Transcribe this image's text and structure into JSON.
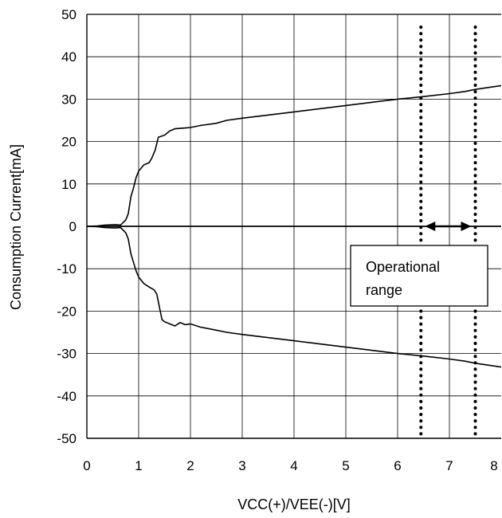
{
  "chart_data": {
    "type": "line",
    "title": "",
    "xlabel": "VCC(+)/VEE(-)[V]",
    "ylabel": "Consumption Current[mA]",
    "xlim": [
      0,
      8
    ],
    "ylim": [
      -50,
      50
    ],
    "x_ticks": [
      "0",
      "1",
      "2",
      "3",
      "4",
      "5",
      "6",
      "7",
      "8"
    ],
    "y_ticks": [
      "50",
      "40",
      "30",
      "20",
      "10",
      "0",
      "-10",
      "-20",
      "-30",
      "-40",
      "-50"
    ],
    "grid": true,
    "series": [
      {
        "points": [
          [
            0.0,
            0.0
          ],
          [
            0.2,
            0.1
          ],
          [
            0.35,
            0.3
          ],
          [
            0.55,
            0.4
          ],
          [
            0.65,
            0.3
          ],
          [
            0.75,
            1.5
          ],
          [
            0.8,
            3.0
          ],
          [
            0.85,
            7.0
          ],
          [
            0.9,
            9.0
          ],
          [
            0.95,
            11.5
          ],
          [
            1.0,
            13.0
          ],
          [
            1.1,
            14.5
          ],
          [
            1.2,
            15.0
          ],
          [
            1.25,
            16.0
          ],
          [
            1.32,
            18.0
          ],
          [
            1.38,
            21.0
          ],
          [
            1.5,
            21.5
          ],
          [
            1.6,
            22.5
          ],
          [
            1.7,
            23.0
          ],
          [
            1.9,
            23.2
          ],
          [
            2.0,
            23.3
          ],
          [
            2.2,
            23.8
          ],
          [
            2.5,
            24.3
          ],
          [
            2.7,
            25.0
          ],
          [
            3.0,
            25.5
          ],
          [
            4.0,
            27.0
          ],
          [
            5.0,
            28.5
          ],
          [
            6.0,
            30.0
          ],
          [
            6.5,
            30.6
          ],
          [
            7.0,
            31.3
          ],
          [
            7.3,
            31.8
          ],
          [
            7.5,
            32.3
          ],
          [
            8.0,
            33.2
          ],
          [
            8.2,
            33.6
          ]
        ]
      },
      {
        "points": [
          [
            0.0,
            0.0
          ],
          [
            0.2,
            -0.1
          ],
          [
            0.35,
            -0.3
          ],
          [
            0.55,
            -0.4
          ],
          [
            0.65,
            -0.3
          ],
          [
            0.75,
            -1.5
          ],
          [
            0.8,
            -3.0
          ],
          [
            0.85,
            -6.5
          ],
          [
            0.9,
            -8.5
          ],
          [
            0.95,
            -10.5
          ],
          [
            1.0,
            -12.0
          ],
          [
            1.1,
            -13.5
          ],
          [
            1.2,
            -14.3
          ],
          [
            1.3,
            -15.0
          ],
          [
            1.35,
            -16.0
          ],
          [
            1.4,
            -19.0
          ],
          [
            1.45,
            -22.0
          ],
          [
            1.5,
            -22.5
          ],
          [
            1.6,
            -23.0
          ],
          [
            1.7,
            -23.5
          ],
          [
            1.8,
            -22.7
          ],
          [
            1.9,
            -23.2
          ],
          [
            2.0,
            -23.0
          ],
          [
            2.2,
            -23.8
          ],
          [
            2.5,
            -24.5
          ],
          [
            2.7,
            -25.0
          ],
          [
            3.0,
            -25.5
          ],
          [
            4.0,
            -27.0
          ],
          [
            5.0,
            -28.5
          ],
          [
            6.0,
            -30.0
          ],
          [
            6.5,
            -30.6
          ],
          [
            7.0,
            -31.3
          ],
          [
            7.3,
            -31.8
          ],
          [
            7.5,
            -32.3
          ],
          [
            8.0,
            -33.2
          ],
          [
            8.2,
            -33.6
          ]
        ]
      }
    ],
    "reference_lines": [
      {
        "x": 6.45,
        "style": "dotted"
      },
      {
        "x": 7.5,
        "style": "dotted"
      }
    ],
    "annotation": {
      "text_line1": "Operational",
      "text_line2": "range",
      "arrow_from": 6.45,
      "arrow_to": 7.5,
      "arrow_y": 0
    }
  }
}
